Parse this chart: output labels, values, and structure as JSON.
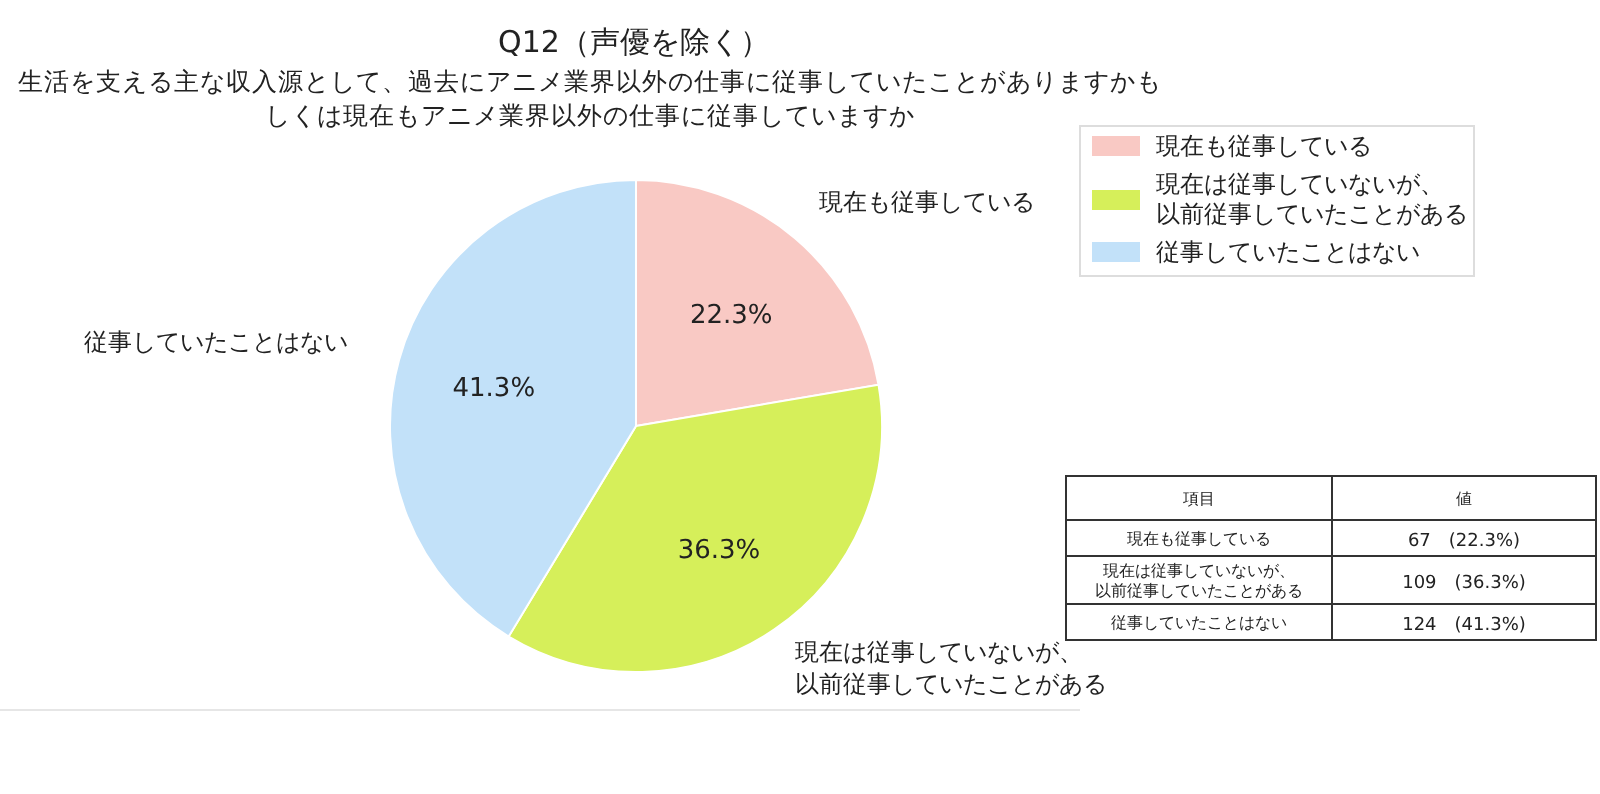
{
  "chart_data": {
    "type": "pie",
    "title": "Q12（声優を除く）",
    "subtitle": "生活を支える主な収入源として、過去にアニメ業界以外の仕事に従事していたことがありますかもしくは現在もアニメ業界以外の仕事に従事していますか",
    "categories": [
      "現在も従事している",
      "現在は従事していないが、以前従事していたことがある",
      "従事していたことはない"
    ],
    "values": [
      22.3,
      36.3,
      41.3
    ],
    "value_labels": [
      "22.3%",
      "36.3%",
      "41.3%"
    ],
    "colors": [
      "#f9c9c4",
      "#d6ef5a",
      "#c2e1f9"
    ],
    "legend": "top right",
    "annotations": [
      "項目",
      "値",
      "67　(22.3%)",
      "109　(36.3%)",
      "124　(41.3%)"
    ]
  }
}
